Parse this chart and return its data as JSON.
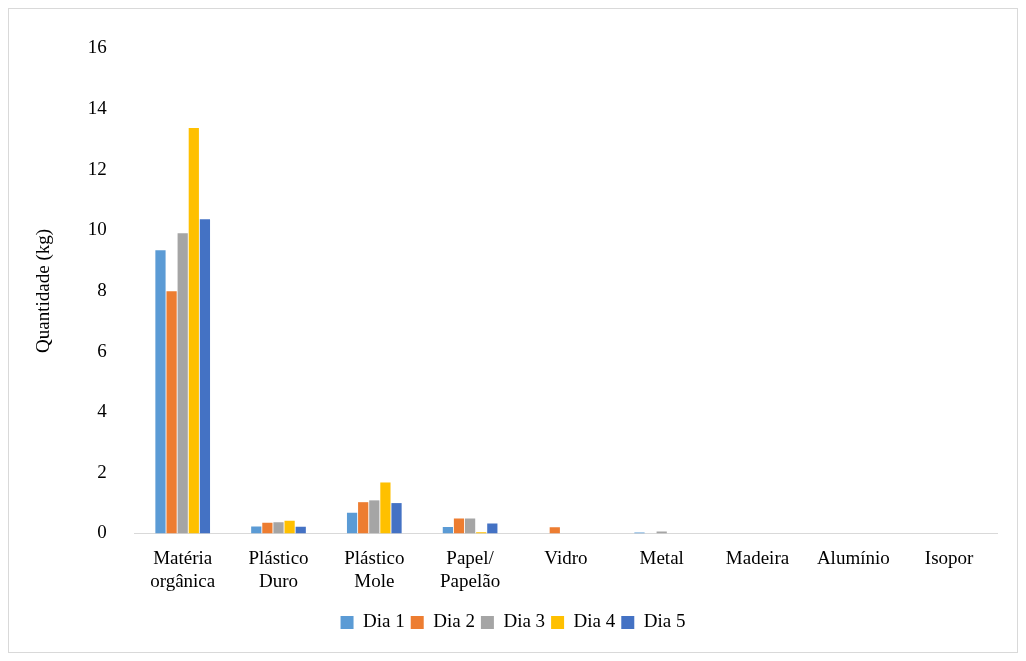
{
  "chart_data": {
    "type": "bar",
    "ylabel": "Quantidade (kg)",
    "categories": [
      "Matéria orgânica",
      "Plástico Duro",
      "Plástico Mole",
      "Papel/ Papelão",
      "Vidro",
      "Metal",
      "Madeira",
      "Alumínio",
      "Isopor"
    ],
    "series": [
      {
        "name": "Dia 1",
        "color": "#5b9bd5",
        "values": [
          9.34,
          0.23,
          0.68,
          0.21,
          0,
          0.03,
          0,
          0,
          0
        ]
      },
      {
        "name": "Dia 2",
        "color": "#ed7d31",
        "values": [
          7.99,
          0.35,
          1.03,
          0.49,
          0.2,
          0,
          0,
          0,
          0
        ]
      },
      {
        "name": "Dia 3",
        "color": "#a5a5a5",
        "values": [
          9.9,
          0.37,
          1.09,
          0.49,
          0,
          0.06,
          0,
          0,
          0
        ]
      },
      {
        "name": "Dia 4",
        "color": "#ffc000",
        "values": [
          13.37,
          0.42,
          1.68,
          0.04,
          0,
          0,
          0,
          0,
          0
        ]
      },
      {
        "name": "Dia 5",
        "color": "#4472c4",
        "values": [
          10.36,
          0.22,
          1.0,
          0.33,
          0,
          0,
          0,
          0,
          0
        ]
      }
    ],
    "ylim": [
      0,
      16
    ],
    "yticks": [
      0,
      2,
      4,
      6,
      8,
      10,
      12,
      14,
      16
    ],
    "grid": false,
    "legend": "bottom"
  }
}
